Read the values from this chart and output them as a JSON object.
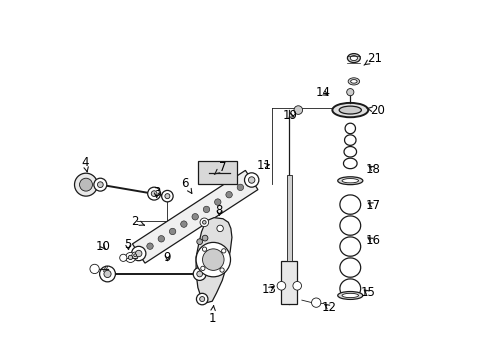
{
  "bg_color": "#ffffff",
  "line_color": "#1a1a1a",
  "label_color": "#000000",
  "figsize": [
    4.89,
    3.6
  ],
  "dpi": 100,
  "label_fontsize": 8.5,
  "label_pairs": [
    [
      "1",
      [
        0.41,
        0.115
      ],
      [
        0.415,
        0.16
      ]
    ],
    [
      "2",
      [
        0.195,
        0.385
      ],
      [
        0.23,
        0.37
      ]
    ],
    [
      "3",
      [
        0.255,
        0.465
      ],
      [
        0.255,
        0.44
      ]
    ],
    [
      "4",
      [
        0.055,
        0.55
      ],
      [
        0.062,
        0.52
      ]
    ],
    [
      "5",
      [
        0.175,
        0.32
      ],
      [
        0.178,
        0.295
      ]
    ],
    [
      "6",
      [
        0.335,
        0.49
      ],
      [
        0.355,
        0.46
      ]
    ],
    [
      "7",
      [
        0.44,
        0.535
      ],
      [
        0.415,
        0.515
      ]
    ],
    [
      "8",
      [
        0.43,
        0.415
      ],
      [
        0.43,
        0.39
      ]
    ],
    [
      "9",
      [
        0.285,
        0.285
      ],
      [
        0.285,
        0.265
      ]
    ],
    [
      "10",
      [
        0.105,
        0.315
      ],
      [
        0.118,
        0.3
      ]
    ],
    [
      "11",
      [
        0.555,
        0.54
      ],
      [
        0.58,
        0.545
      ]
    ],
    [
      "12",
      [
        0.735,
        0.145
      ],
      [
        0.715,
        0.16
      ]
    ],
    [
      "13",
      [
        0.57,
        0.195
      ],
      [
        0.59,
        0.21
      ]
    ],
    [
      "14",
      [
        0.718,
        0.745
      ],
      [
        0.742,
        0.73
      ]
    ],
    [
      "15",
      [
        0.845,
        0.185
      ],
      [
        0.825,
        0.2
      ]
    ],
    [
      "16",
      [
        0.858,
        0.33
      ],
      [
        0.835,
        0.345
      ]
    ],
    [
      "17",
      [
        0.858,
        0.43
      ],
      [
        0.835,
        0.44
      ]
    ],
    [
      "18",
      [
        0.86,
        0.53
      ],
      [
        0.838,
        0.545
      ]
    ],
    [
      "19",
      [
        0.628,
        0.68
      ],
      [
        0.648,
        0.672
      ]
    ],
    [
      "20",
      [
        0.87,
        0.695
      ],
      [
        0.84,
        0.7
      ]
    ],
    [
      "21",
      [
        0.862,
        0.84
      ],
      [
        0.833,
        0.82
      ]
    ]
  ]
}
